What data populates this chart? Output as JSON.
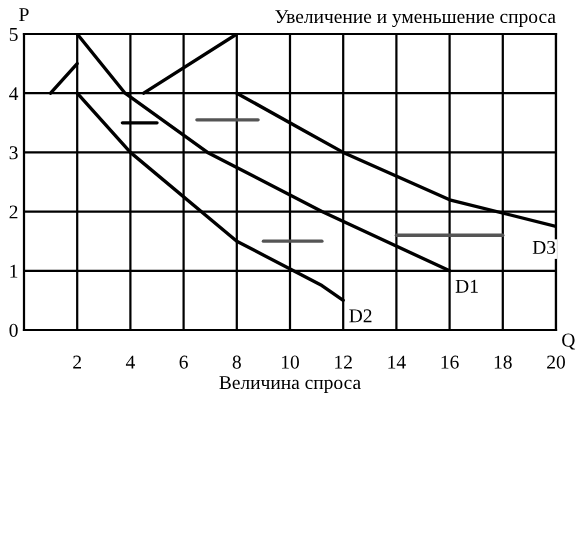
{
  "chart_data": {
    "type": "line",
    "title": "Увеличение и уменьшение спроса",
    "xlabel": "Величина спроса",
    "ylabel": "P",
    "annotations": [
      "Q"
    ],
    "xlim": [
      0,
      20
    ],
    "ylim": [
      0,
      5
    ],
    "xticks": [
      2,
      4,
      6,
      8,
      10,
      12,
      14,
      16,
      18,
      20
    ],
    "yticks": [
      {
        "value": 0,
        "label": "0"
      },
      1,
      2,
      3,
      4,
      5
    ],
    "grid": true,
    "legend": false,
    "series": [
      {
        "name": "D1",
        "color": "#000000",
        "x": [
          2,
          3.8,
          6.9,
          11.2,
          16
        ],
        "values": [
          5,
          4,
          3,
          2,
          1
        ]
      },
      {
        "name": "D2",
        "color": "#000000",
        "x": [
          2,
          4,
          8,
          11.2,
          12
        ],
        "values": [
          4,
          3,
          1.5,
          0.75,
          0.5
        ]
      },
      {
        "name": "D3",
        "color": "#000000",
        "x": [
          8,
          10.6,
          12,
          16,
          20
        ],
        "values": [
          4,
          3.35,
          3,
          2.2,
          1.75
        ]
      },
      {
        "color": "#000000",
        "x": [
          4.5,
          8
        ],
        "values": [
          4,
          5
        ]
      },
      {
        "color": "#000000",
        "x": [
          1,
          2
        ],
        "values": [
          4,
          4.5
        ]
      },
      {
        "color": "#000000",
        "x": [
          3.7,
          5
        ],
        "values": [
          3.5,
          3.5
        ]
      },
      {
        "color": "#555555",
        "x": [
          6.5,
          8.8
        ],
        "values": [
          3.55,
          3.55
        ]
      },
      {
        "color": "#555555",
        "x": [
          9,
          11.2
        ],
        "values": [
          1.5,
          1.5
        ]
      },
      {
        "color": "#555555",
        "x": [
          14,
          18
        ],
        "values": [
          1.6,
          1.6
        ]
      }
    ]
  }
}
